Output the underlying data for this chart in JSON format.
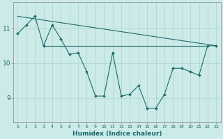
{
  "x": [
    0,
    1,
    2,
    3,
    4,
    5,
    6,
    7,
    8,
    9,
    10,
    11,
    12,
    13,
    14,
    15,
    16,
    17,
    18,
    19,
    20,
    21,
    22,
    23
  ],
  "y_main": [
    10.85,
    11.1,
    11.35,
    10.5,
    11.1,
    10.7,
    10.25,
    10.3,
    9.75,
    9.05,
    9.05,
    10.3,
    9.05,
    9.1,
    9.35,
    8.7,
    8.7,
    9.1,
    9.85,
    9.85,
    9.75,
    9.65,
    10.5,
    10.5
  ],
  "y_flat": [
    10.5,
    10.5,
    10.5,
    10.5,
    10.5,
    10.5,
    10.5,
    10.5,
    10.5,
    10.5,
    10.5,
    10.5,
    10.5,
    10.5,
    10.5,
    10.5,
    10.5,
    10.5,
    10.5,
    10.5,
    10.5,
    10.5,
    10.5,
    10.5
  ],
  "y_trend_x": [
    0,
    23
  ],
  "y_trend_y": [
    11.35,
    10.5
  ],
  "line_color": "#1a6b6b",
  "bg_color": "#cceae8",
  "grid_color": "#aad4d0",
  "xlabel": "Humidex (Indice chaleur)",
  "ylabel_ticks": [
    9,
    10,
    11
  ],
  "xlim": [
    -0.5,
    23.5
  ],
  "ylim": [
    8.3,
    11.75
  ]
}
